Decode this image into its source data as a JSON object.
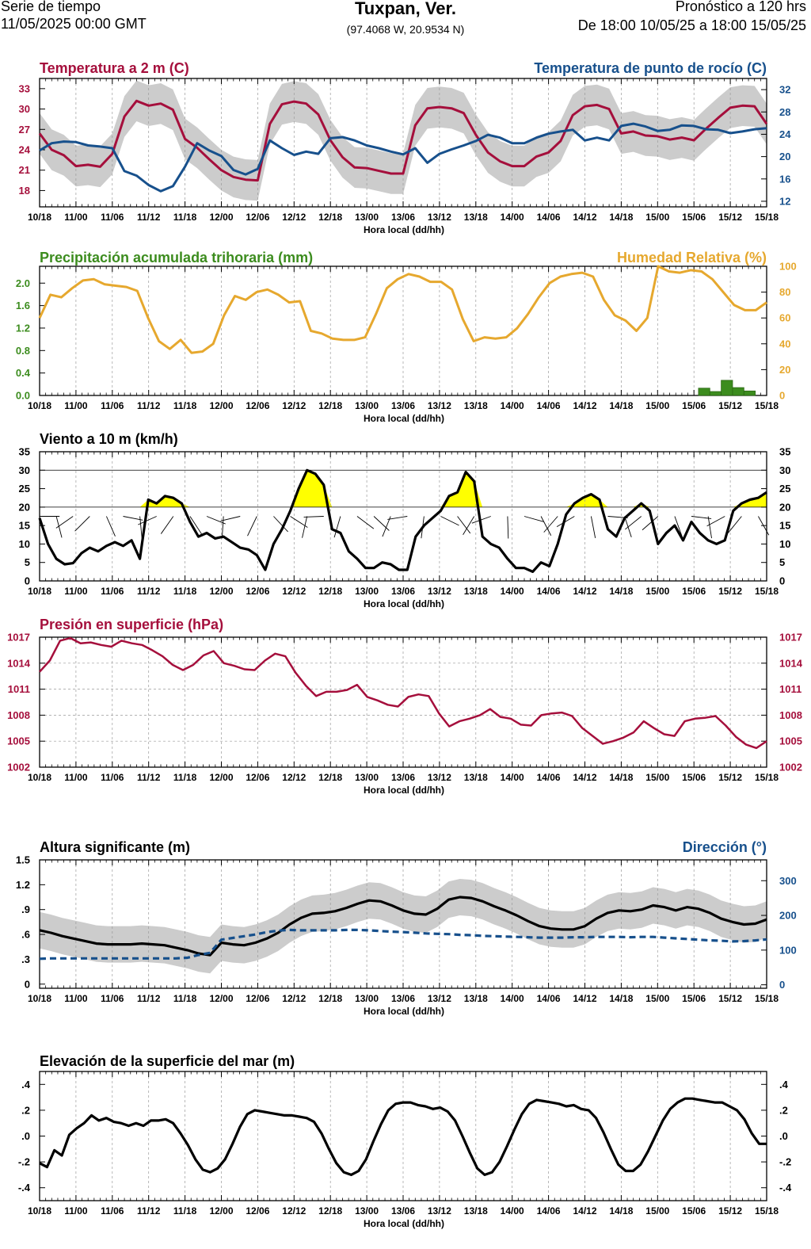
{
  "header": {
    "left_line1": "Serie de tiempo",
    "left_line2": "11/05/2025 00:00 GMT",
    "title": "Tuxpan, Ver.",
    "coords": "(97.4068 W, 20.9534 N)",
    "right_line1": "Pronóstico a 120 hrs",
    "right_line2": "De 18:00 10/05/25 a 18:00 15/05/25"
  },
  "x_ticks": [
    "10/18",
    "11/00",
    "11/06",
    "11/12",
    "11/18",
    "12/00",
    "12/06",
    "12/12",
    "12/18",
    "13/00",
    "13/06",
    "13/12",
    "13/18",
    "14/00",
    "14/06",
    "14/12",
    "14/18",
    "15/00",
    "15/06",
    "15/12",
    "15/18"
  ],
  "x_label": "Hora local (dd/hh)",
  "colors": {
    "temp": "#a50f3c",
    "dew": "#17508c",
    "precip": "#3c8c1e",
    "rh": "#e6a82e",
    "wind": "#000000",
    "fill_yellow": "#ffff00",
    "band": "#cccccc",
    "pressure": "#a50f3c"
  },
  "chart_data": [
    {
      "id": "temp",
      "type": "line",
      "title_left": "Temperatura a 2 m (C)",
      "title_right": "Temperatura de punto de rocío (C)",
      "xlabel": "Hora local (dd/hh)",
      "ylim_left": [
        15.6,
        34.5
      ],
      "yticks_left": [
        18,
        21,
        24,
        27,
        30,
        33
      ],
      "ylim_right": [
        11,
        34
      ],
      "yticks_right": [
        12,
        16,
        20,
        24,
        28,
        32
      ],
      "series": [
        {
          "name": "Temperatura a 2 m (C)",
          "axis": "left",
          "band": 3.0,
          "values": [
            26.4,
            24.0,
            23.2,
            21.6,
            21.8,
            21.5,
            23.4,
            28.9,
            31.2,
            30.5,
            30.8,
            29.9,
            25.6,
            24.3,
            22.6,
            21.0,
            20.0,
            19.6,
            19.5,
            27.8,
            30.7,
            31.1,
            30.8,
            29.2,
            25.4,
            22.9,
            21.4,
            21.3,
            20.9,
            20.5,
            20.5,
            27.6,
            30.1,
            30.3,
            30.1,
            29.4,
            26.2,
            23.6,
            22.3,
            21.6,
            21.6,
            23.0,
            23.6,
            25.3,
            29.1,
            30.4,
            30.6,
            30.0,
            26.4,
            26.7,
            26.1,
            26.0,
            25.5,
            25.8,
            25.4,
            27.1,
            28.7,
            30.2,
            30.5,
            30.4,
            27.8
          ]
        },
        {
          "name": "Temperatura de punto de rocío (C)",
          "axis": "right",
          "band": 0,
          "values": [
            21.1,
            22.4,
            22.7,
            22.6,
            22.0,
            21.8,
            21.5,
            17.4,
            16.6,
            14.9,
            13.8,
            14.7,
            18.2,
            22.4,
            21.1,
            20.1,
            17.6,
            16.8,
            17.8,
            22.9,
            21.5,
            20.3,
            20.9,
            20.5,
            23.3,
            23.5,
            22.9,
            22.0,
            21.5,
            20.9,
            20.4,
            21.5,
            18.9,
            20.5,
            21.3,
            22.0,
            22.8,
            23.9,
            23.4,
            22.4,
            22.4,
            23.4,
            24.1,
            24.5,
            24.8,
            22.9,
            23.4,
            22.9,
            25.5,
            25.9,
            25.4,
            24.6,
            24.8,
            25.6,
            25.5,
            24.9,
            24.8,
            24.2,
            24.5,
            24.9,
            25.1
          ]
        }
      ]
    },
    {
      "id": "precip",
      "type": "bar+line",
      "title_left": "Precipitación acumulada trihoraria (mm)",
      "title_right": "Humedad Relativa (%)",
      "xlabel": "Hora local (dd/hh)",
      "ylim_left": [
        0,
        2.3
      ],
      "yticks_left": [
        "0.0",
        "0.4",
        "0.8",
        "1.2",
        "1.6",
        "2.0"
      ],
      "ylim_right": [
        0,
        100
      ],
      "yticks_right": [
        0,
        20,
        40,
        60,
        80,
        100
      ],
      "precip_bars": [
        0,
        0,
        0,
        0,
        0,
        0,
        0,
        0,
        0,
        0,
        0,
        0,
        0,
        0,
        0,
        0,
        0,
        0,
        0,
        0,
        0,
        0,
        0,
        0,
        0,
        0,
        0,
        0,
        0,
        0,
        0,
        0,
        0,
        0,
        0,
        0,
        0,
        0,
        0,
        0,
        0,
        0,
        0,
        0,
        0,
        0,
        0,
        0,
        0,
        0,
        0,
        0,
        0,
        0,
        0,
        0,
        0,
        0,
        0.13,
        0.07,
        0.27,
        0.14,
        0.08,
        0
      ],
      "humidity": [
        60,
        78,
        76,
        83,
        89,
        90,
        86,
        85,
        84,
        81,
        60,
        42,
        36,
        43,
        33,
        34,
        40,
        62,
        77,
        74,
        80,
        82,
        78,
        72,
        73,
        50,
        48,
        44,
        43,
        43,
        45,
        63,
        83,
        90,
        94,
        92,
        88,
        88,
        82,
        59,
        42,
        45,
        44,
        45,
        52,
        63,
        76,
        87,
        92,
        94,
        95,
        92,
        74,
        62,
        58,
        50,
        60,
        100,
        96,
        95,
        97,
        96,
        90,
        80,
        70,
        66,
        66,
        72
      ]
    },
    {
      "id": "wind",
      "type": "line",
      "title_left": "Viento a 10 m (km/h)",
      "xlabel": "Hora local (dd/hh)",
      "ylim": [
        0,
        35
      ],
      "yticks": [
        0,
        5,
        10,
        15,
        20,
        25,
        30,
        35
      ],
      "fill_threshold": 20,
      "values": [
        17.0,
        10.0,
        6.0,
        4.5,
        4.8,
        7.5,
        9.0,
        8.0,
        9.5,
        10.5,
        9.5,
        11.0,
        6.0,
        22.0,
        21.0,
        23.0,
        22.5,
        21.0,
        16.0,
        12.0,
        13.0,
        11.5,
        12.0,
        10.5,
        9.0,
        8.5,
        7.0,
        3.0,
        10.0,
        14.0,
        19.0,
        25.0,
        30.0,
        29.0,
        26.0,
        14.0,
        13.0,
        8.0,
        6.0,
        3.5,
        3.5,
        5.0,
        4.5,
        3.0,
        3.0,
        12.0,
        15.0,
        17.0,
        19.0,
        23.0,
        24.0,
        29.5,
        27.0,
        12.0,
        10.0,
        9.0,
        6.0,
        3.5,
        3.5,
        2.5,
        5.0,
        4.0,
        10.0,
        18.0,
        21.0,
        22.5,
        23.5,
        22.0,
        14.0,
        12.0,
        17.0,
        19.0,
        21.0,
        19.0,
        10.0,
        13.0,
        15.0,
        11.0,
        16.0,
        13.0,
        11.0,
        10.0,
        11.0,
        19.0,
        21.0,
        22.0,
        22.5,
        24.0
      ]
    },
    {
      "id": "pressure",
      "type": "line",
      "title_left": "Presión en superficie (hPa)",
      "xlabel": "Hora local (dd/hh)",
      "ylim": [
        1002,
        1017
      ],
      "yticks": [
        1002,
        1005,
        1008,
        1011,
        1014,
        1017
      ],
      "values": [
        1013.0,
        1014.3,
        1016.6,
        1016.9,
        1016.3,
        1016.4,
        1016.1,
        1015.9,
        1016.6,
        1016.3,
        1016.1,
        1015.5,
        1014.8,
        1013.8,
        1013.2,
        1013.8,
        1014.9,
        1015.4,
        1014.0,
        1013.7,
        1013.3,
        1013.2,
        1014.3,
        1015.1,
        1014.8,
        1012.9,
        1011.4,
        1010.2,
        1010.7,
        1010.7,
        1010.9,
        1011.5,
        1010.1,
        1009.7,
        1009.2,
        1009.0,
        1010.1,
        1010.4,
        1010.2,
        1008.2,
        1006.7,
        1007.3,
        1007.6,
        1008.0,
        1008.7,
        1007.8,
        1007.6,
        1006.9,
        1006.8,
        1008.0,
        1008.2,
        1008.3,
        1007.9,
        1006.5,
        1005.6,
        1004.7,
        1005.0,
        1005.4,
        1006.0,
        1007.3,
        1006.5,
        1005.8,
        1005.6,
        1007.3,
        1007.6,
        1007.7,
        1007.9,
        1006.8,
        1005.5,
        1004.6,
        1004.2,
        1005.0
      ]
    },
    {
      "id": "waves",
      "type": "line",
      "title_left": "Altura significante (m)",
      "title_right": "Dirección (°)",
      "xlabel": "Hora local (dd/hh)",
      "ylim_left": [
        -0.05,
        1.5
      ],
      "yticks_left": [
        {
          "v": 0,
          "label": "0"
        },
        {
          "v": 0.3,
          "label": ".3"
        },
        {
          "v": 0.6,
          "label": ".6"
        },
        {
          "v": 0.9,
          "label": ".9"
        },
        {
          "v": 1.2,
          "label": "1.2"
        },
        {
          "v": 1.5,
          "label": "1.5"
        }
      ],
      "ylim_right": [
        -10,
        360
      ],
      "yticks_right": [
        0,
        100,
        200,
        300
      ],
      "series": [
        {
          "name": "Altura significante (m)",
          "axis": "left",
          "band": 0.22,
          "values": [
            0.65,
            0.62,
            0.58,
            0.55,
            0.52,
            0.49,
            0.48,
            0.48,
            0.48,
            0.49,
            0.48,
            0.47,
            0.44,
            0.41,
            0.37,
            0.35,
            0.5,
            0.48,
            0.47,
            0.5,
            0.55,
            0.62,
            0.72,
            0.8,
            0.85,
            0.86,
            0.88,
            0.92,
            0.97,
            1.01,
            1.0,
            0.95,
            0.89,
            0.85,
            0.84,
            0.91,
            1.02,
            1.05,
            1.04,
            1.0,
            0.94,
            0.89,
            0.83,
            0.76,
            0.7,
            0.67,
            0.66,
            0.66,
            0.7,
            0.79,
            0.86,
            0.89,
            0.88,
            0.9,
            0.95,
            0.93,
            0.89,
            0.93,
            0.91,
            0.86,
            0.79,
            0.75,
            0.72,
            0.73,
            0.78
          ]
        },
        {
          "name": "Dirección (°)",
          "axis": "right",
          "band": 0,
          "values": [
            75,
            76,
            76,
            76,
            76,
            76,
            76,
            76,
            76,
            76,
            76,
            76,
            76,
            78,
            86,
            92,
            130,
            135,
            140,
            145,
            152,
            156,
            158,
            157,
            157,
            157,
            157,
            158,
            158,
            157,
            155,
            153,
            152,
            150,
            148,
            147,
            146,
            144,
            143,
            141,
            140,
            139,
            138,
            137,
            136,
            136,
            136,
            137,
            137,
            138,
            138,
            138,
            137,
            138,
            138,
            136,
            134,
            132,
            130,
            128,
            127,
            125,
            126,
            128,
            131
          ]
        }
      ]
    },
    {
      "id": "sealevel",
      "type": "line",
      "title_left": "Elevación de la superficie del mar (m)",
      "xlabel": "Hora local (dd/hh)",
      "ylim": [
        -0.5,
        0.5
      ],
      "yticks": [
        {
          "v": -0.4,
          "label": "-.4"
        },
        {
          "v": -0.2,
          "label": "-.2"
        },
        {
          "v": 0,
          "label": ".0"
        },
        {
          "v": 0.2,
          "label": ".2"
        },
        {
          "v": 0.4,
          "label": ".4"
        }
      ],
      "values": [
        -0.21,
        -0.24,
        -0.11,
        -0.15,
        0.01,
        0.06,
        0.1,
        0.16,
        0.12,
        0.14,
        0.11,
        0.1,
        0.08,
        0.1,
        0.08,
        0.12,
        0.12,
        0.13,
        0.1,
        0.02,
        -0.07,
        -0.18,
        -0.26,
        -0.28,
        -0.25,
        -0.18,
        -0.06,
        0.07,
        0.17,
        0.2,
        0.19,
        0.18,
        0.17,
        0.16,
        0.16,
        0.15,
        0.14,
        0.11,
        0.02,
        -0.1,
        -0.21,
        -0.28,
        -0.3,
        -0.27,
        -0.18,
        -0.04,
        0.09,
        0.2,
        0.25,
        0.26,
        0.26,
        0.24,
        0.23,
        0.21,
        0.22,
        0.19,
        0.12,
        0.0,
        -0.13,
        -0.25,
        -0.3,
        -0.28,
        -0.2,
        -0.08,
        0.05,
        0.17,
        0.25,
        0.28,
        0.27,
        0.26,
        0.25,
        0.23,
        0.24,
        0.21,
        0.2,
        0.14,
        0.03,
        -0.1,
        -0.22,
        -0.27,
        -0.27,
        -0.22,
        -0.12,
        0.0,
        0.12,
        0.21,
        0.26,
        0.29,
        0.29,
        0.28,
        0.27,
        0.26,
        0.26,
        0.23,
        0.2,
        0.13,
        0.02,
        -0.06,
        -0.06
      ]
    }
  ]
}
